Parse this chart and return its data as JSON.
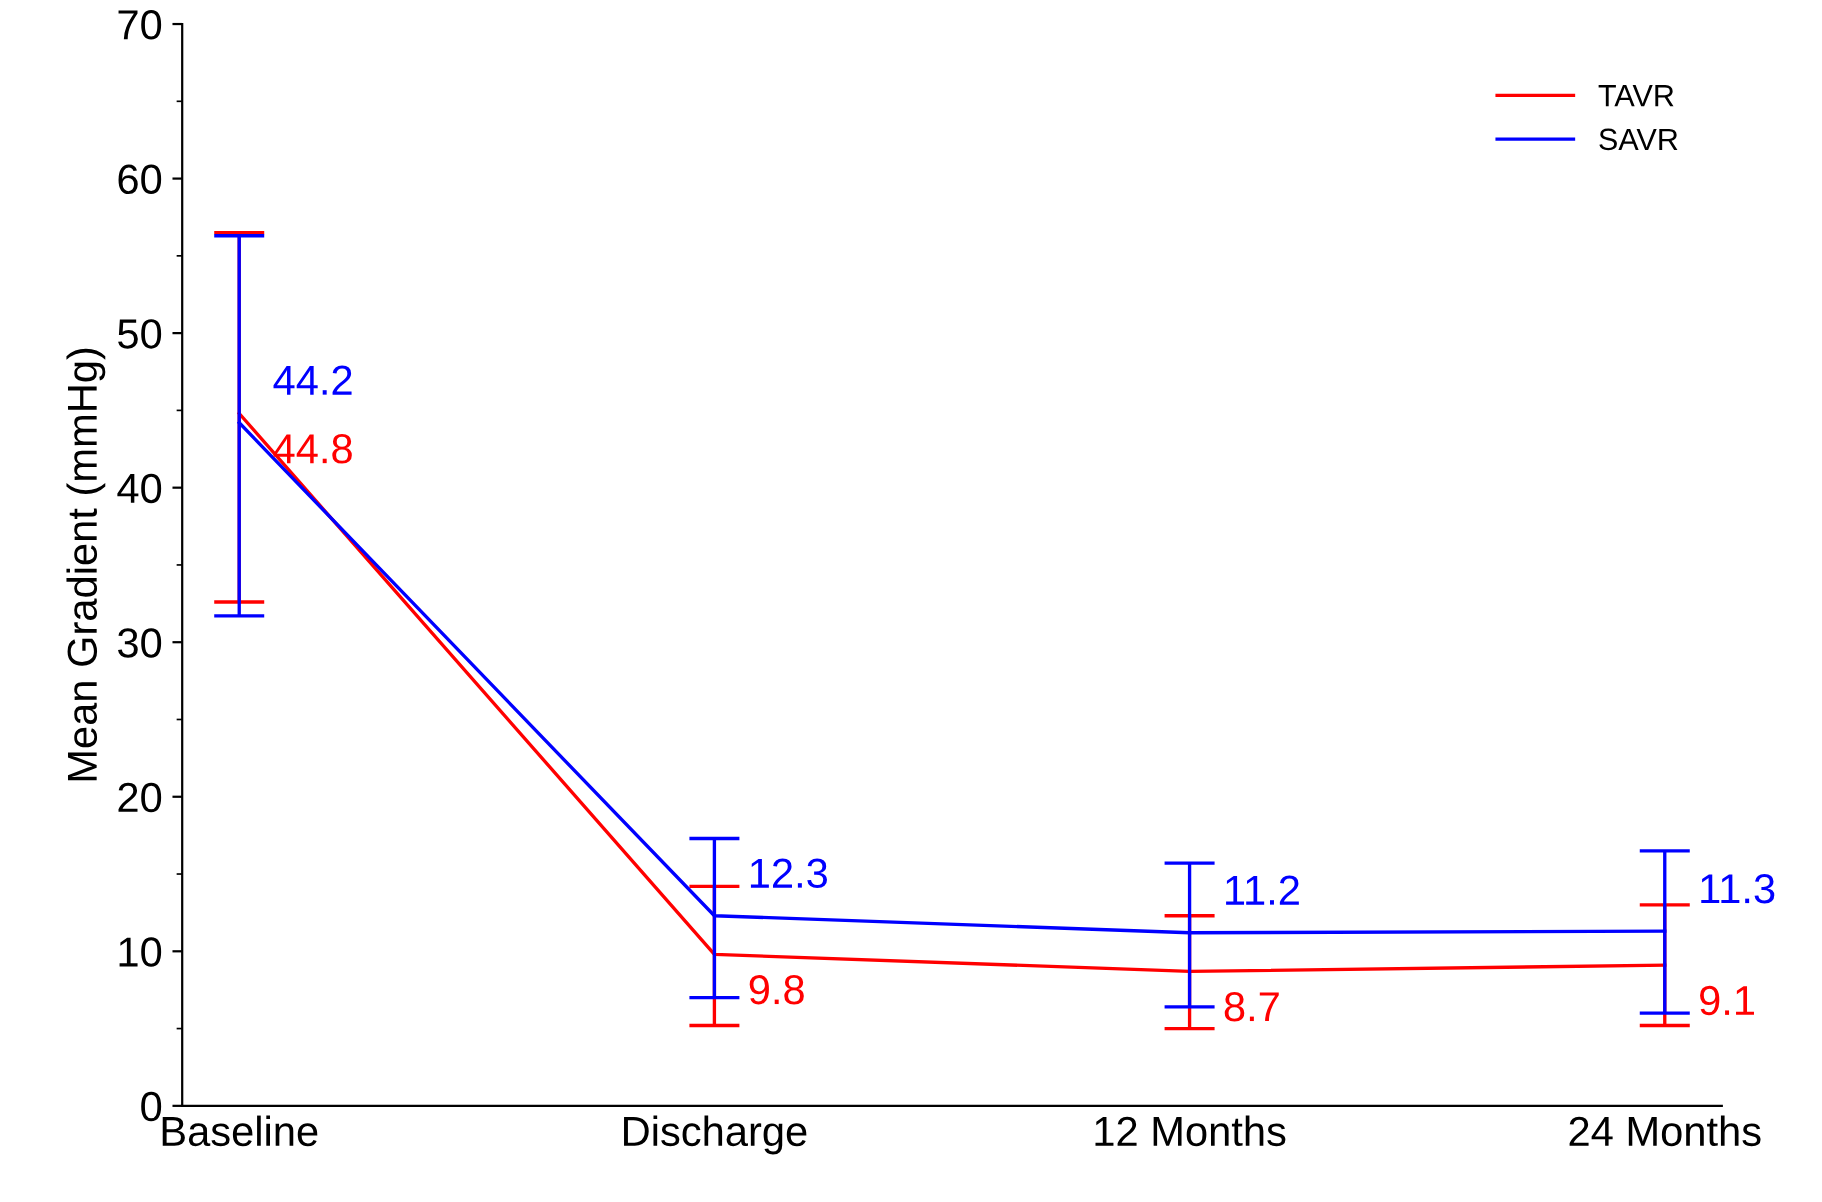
{
  "chart_data": {
    "type": "line",
    "ylabel": "Mean Gradient (mmHg)",
    "categories": [
      "Baseline",
      "Discharge",
      "12 Months",
      "24 Months"
    ],
    "series": [
      {
        "name": "TAVR",
        "color": "#ff0000",
        "values": [
          44.8,
          9.8,
          8.7,
          9.1
        ],
        "errors": [
          [
            32.6,
            56.5
          ],
          [
            5.2,
            14.2
          ],
          [
            5.0,
            12.3
          ],
          [
            5.2,
            13.0
          ]
        ]
      },
      {
        "name": "SAVR",
        "color": "#0000ff",
        "values": [
          44.2,
          12.3,
          11.2,
          11.3
        ],
        "errors": [
          [
            31.7,
            56.3
          ],
          [
            7.0,
            17.3
          ],
          [
            6.4,
            15.7
          ],
          [
            6.0,
            16.5
          ]
        ]
      }
    ],
    "ylim": [
      0,
      70
    ],
    "yticks": [
      0,
      10,
      20,
      30,
      40,
      50,
      60,
      70
    ],
    "data_labels": true,
    "legend": "top right",
    "grid": false,
    "marker": "none",
    "line_style": "solid"
  }
}
